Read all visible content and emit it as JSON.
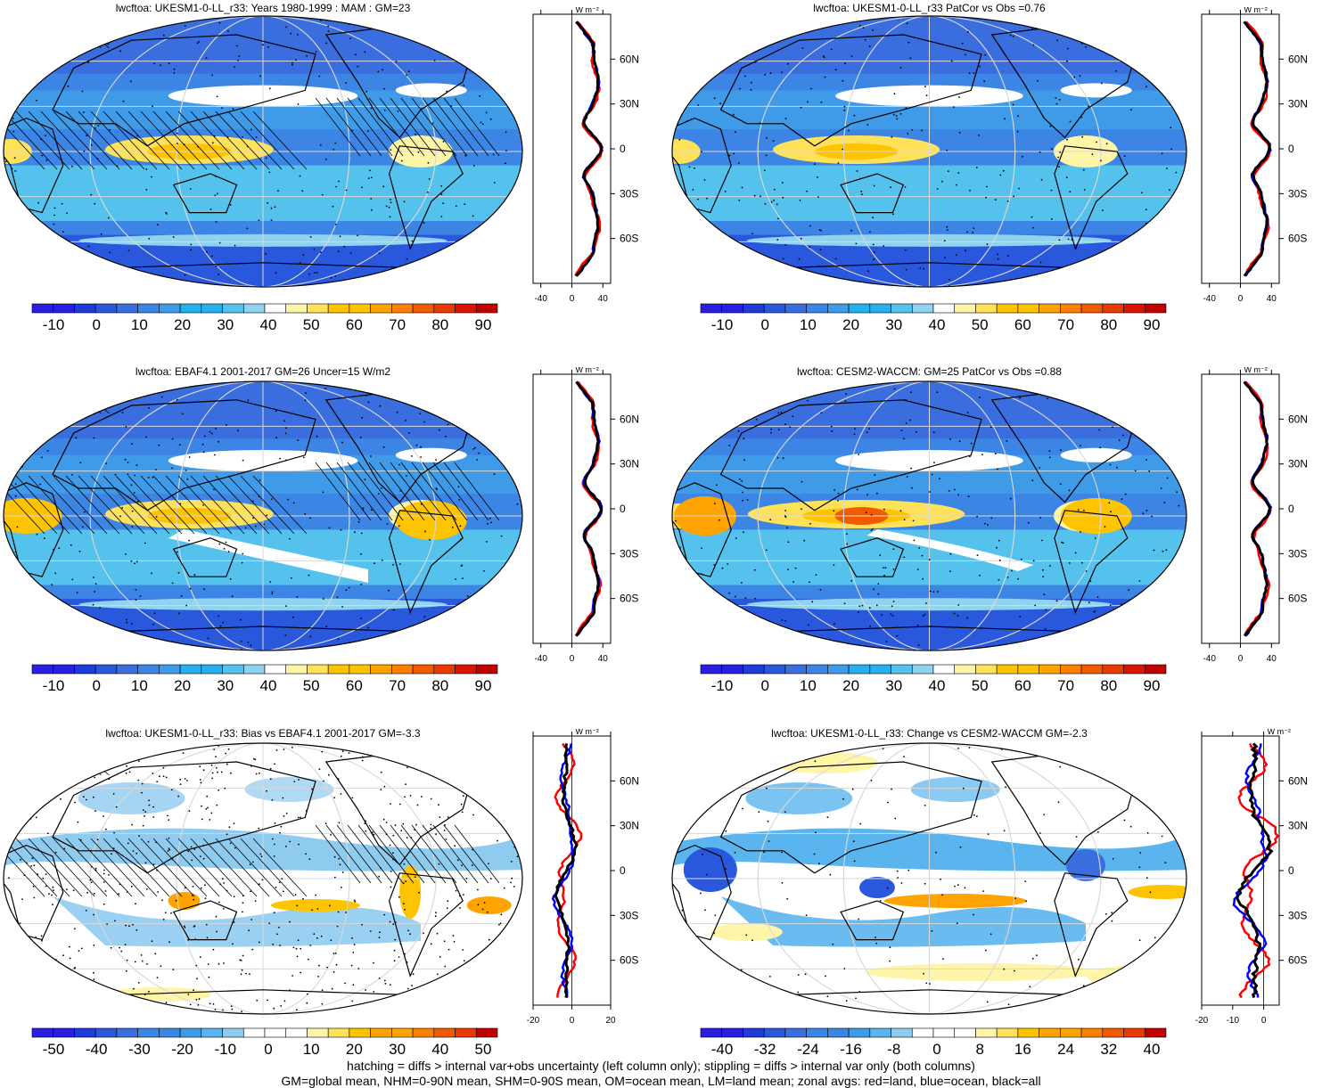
{
  "colors": {
    "palette": [
      "#2a1ee0",
      "#1f3bd8",
      "#2a58dc",
      "#3a6ede",
      "#3d85e4",
      "#3f9ae8",
      "#25b0ee",
      "#55c2ee",
      "#8fd3ef",
      "#ffffff",
      "#fff5a8",
      "#ffe25a",
      "#ffc400",
      "#ffa300",
      "#ff7f00",
      "#f25a00",
      "#e83a00",
      "#d91400",
      "#c10000"
    ],
    "diff_palette": [
      "#2a1ee0",
      "#1f3bd8",
      "#2a58dc",
      "#3a6ede",
      "#3d85e4",
      "#3f9ae8",
      "#5ab5ee",
      "#8fcbef",
      "#ffffff",
      "#ffffff",
      "#fff5a8",
      "#ffe25a",
      "#ffc400",
      "#ffa300",
      "#ff7f00",
      "#f25a00",
      "#e83a00",
      "#c10000"
    ],
    "zonal_land": "#ff0000",
    "zonal_ocean": "#0000ff",
    "zonal_all": "#000000"
  },
  "panels": [
    {
      "title": "lwcftoa: UKESM1-0-LL_r33: Years 1980-1999 : MAM : GM=23",
      "map_kind": "model",
      "hatching": true,
      "colorbar_labels": [
        "-10",
        "0",
        "10",
        "20",
        "30",
        "40",
        "50",
        "60",
        "70",
        "80",
        "90"
      ],
      "zonal_unit": "W m⁻²",
      "zonal_xticks": [
        "-40",
        "0",
        "40"
      ],
      "zonal_lat_labels": [
        "60N",
        "30N",
        "0",
        "30S",
        "60S"
      ]
    },
    {
      "title": "lwcftoa: UKESM1-0-LL_r33 PatCor vs Obs =0.76",
      "map_kind": "model",
      "hatching": false,
      "colorbar_labels": [
        "-10",
        "0",
        "10",
        "20",
        "30",
        "40",
        "50",
        "60",
        "70",
        "80",
        "90"
      ],
      "zonal_unit": "W m⁻²",
      "zonal_xticks": [
        "-40",
        "0",
        "40"
      ],
      "zonal_lat_labels": [
        "60N",
        "30N",
        "0",
        "30S",
        "60S"
      ]
    },
    {
      "title": "lwcftoa: EBAF4.1 2001-2017 GM=26 Uncer=15 W/m2",
      "map_kind": "obs",
      "hatching": true,
      "colorbar_labels": [
        "-10",
        "0",
        "10",
        "20",
        "30",
        "40",
        "50",
        "60",
        "70",
        "80",
        "90"
      ],
      "zonal_unit": "W m⁻²",
      "zonal_xticks": [
        "-40",
        "0",
        "40"
      ],
      "zonal_lat_labels": [
        "60N",
        "30N",
        "0",
        "30S",
        "60S"
      ]
    },
    {
      "title": "lwcftoa: CESM2-WACCM: GM=25 PatCor vs Obs =0.88",
      "map_kind": "model2",
      "hatching": false,
      "colorbar_labels": [
        "-10",
        "0",
        "10",
        "20",
        "30",
        "40",
        "50",
        "60",
        "70",
        "80",
        "90"
      ],
      "zonal_unit": "W m⁻²",
      "zonal_xticks": [
        "-40",
        "0",
        "40"
      ],
      "zonal_lat_labels": [
        "60N",
        "30N",
        "0",
        "30S",
        "60S"
      ]
    },
    {
      "title": "lwcftoa: UKESM1-0-LL_r33: Bias vs EBAF4.1 2001-2017 GM=-3.3",
      "map_kind": "bias",
      "hatching": true,
      "colorbar_labels": [
        "-50",
        "-40",
        "-30",
        "-20",
        "-10",
        "0",
        "10",
        "20",
        "30",
        "40",
        "50"
      ],
      "zonal_unit": "W m⁻²",
      "zonal_xticks": [
        "-20",
        "0",
        "20"
      ],
      "zonal_lat_labels": [
        "60N",
        "30N",
        "0",
        "30S",
        "60S"
      ]
    },
    {
      "title": "lwcftoa: UKESM1-0-LL_r33: Change vs CESM2-WACCM GM=-2.3",
      "map_kind": "change",
      "hatching": false,
      "colorbar_labels": [
        "-40",
        "-32",
        "-24",
        "-16",
        "-8",
        "0",
        "8",
        "16",
        "24",
        "32",
        "40"
      ],
      "zonal_unit": "W m⁻²",
      "zonal_xticks": [
        "-20",
        "-10",
        "0"
      ],
      "zonal_lat_labels": [
        "60N",
        "30N",
        "0",
        "30S",
        "60S"
      ]
    }
  ],
  "footer": {
    "line1": "hatching = diffs > internal var+obs uncertainty (left column only); stippling = diffs > internal var only (both columns)",
    "line2": "GM=global mean, NHM=0-90N mean, SHM=0-90S mean, OM=ocean mean, LM=land mean; zonal avgs: red=land, blue=ocean, black=all"
  }
}
